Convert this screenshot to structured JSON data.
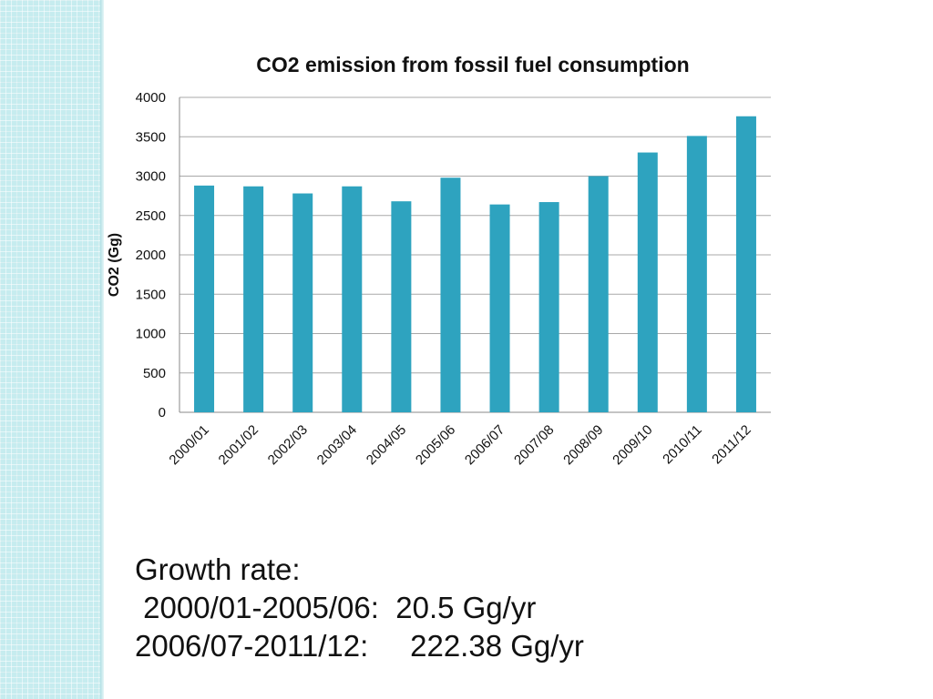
{
  "chart_data": {
    "type": "bar",
    "title": "CO2 emission from fossil fuel consumption",
    "xlabel": "",
    "ylabel": "CO2 (Gg)",
    "ylim": [
      0,
      4000
    ],
    "yticks": [
      0,
      500,
      1000,
      1500,
      2000,
      2500,
      3000,
      3500,
      4000
    ],
    "grid": true,
    "legend": "none",
    "bar_color": "#2ea3bf",
    "categories": [
      "2000/01",
      "2001/02",
      "2002/03",
      "2003/04",
      "2004/05",
      "2005/06",
      "2006/07",
      "2007/08",
      "2008/09",
      "2009/10",
      "2010/11",
      "2011/12"
    ],
    "values": [
      2880,
      2870,
      2780,
      2870,
      2680,
      2980,
      2640,
      2670,
      3000,
      3300,
      3510,
      3760
    ]
  },
  "notes": {
    "heading": "Growth rate:",
    "line1": " 2000/01-2005/06:  20.5 Gg/yr",
    "line2": "2006/07-2011/12:     222.38 Gg/yr"
  }
}
